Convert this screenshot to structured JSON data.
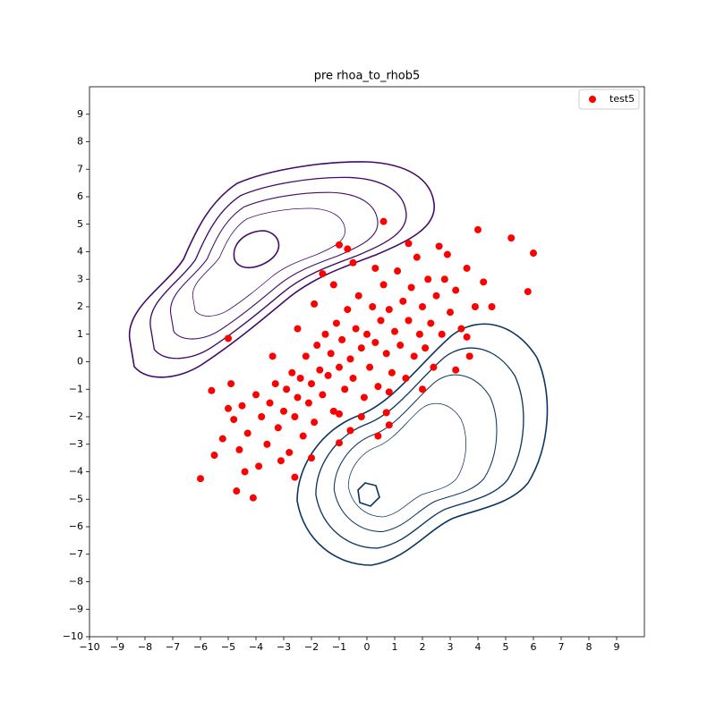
{
  "chart_data": {
    "type": "scatter",
    "title": "pre rhoa_to_rhob5",
    "xlim": [
      -10,
      10
    ],
    "ylim": [
      -10,
      10
    ],
    "xticks": [
      {
        "value": -10,
        "label": "−10"
      },
      {
        "value": -9,
        "label": "−9"
      },
      {
        "value": -8,
        "label": "−8"
      },
      {
        "value": -7,
        "label": "−7"
      },
      {
        "value": -6,
        "label": "−6"
      },
      {
        "value": -5,
        "label": "−5"
      },
      {
        "value": -4,
        "label": "−4"
      },
      {
        "value": -3,
        "label": "−3"
      },
      {
        "value": -2,
        "label": "−2"
      },
      {
        "value": -1,
        "label": "−1"
      },
      0,
      1,
      2,
      3,
      4,
      5,
      6,
      7,
      8,
      9
    ],
    "yticks": [
      {
        "value": -10,
        "label": "−10"
      },
      {
        "value": -9,
        "label": "−9"
      },
      {
        "value": -8,
        "label": "−8"
      },
      {
        "value": -7,
        "label": "−7"
      },
      {
        "value": -6,
        "label": "−6"
      },
      {
        "value": -5,
        "label": "−5"
      },
      {
        "value": -4,
        "label": "−4"
      },
      {
        "value": -3,
        "label": "−3"
      },
      {
        "value": -2,
        "label": "−2"
      },
      {
        "value": -1,
        "label": "−1"
      },
      0,
      1,
      2,
      3,
      4,
      5,
      6,
      7,
      8,
      9
    ],
    "legend": "upper right",
    "series": [
      {
        "name": "test5",
        "color": "#ff0000",
        "x": [
          -4.8,
          -4.5,
          -4.3,
          -4.0,
          -3.8,
          -3.6,
          -3.5,
          -3.3,
          -3.2,
          -3.0,
          -2.9,
          -2.8,
          -2.7,
          -2.6,
          -2.5,
          -2.4,
          -2.3,
          -2.2,
          -2.1,
          -2.0,
          -1.9,
          -1.8,
          -1.7,
          -1.6,
          -1.5,
          -1.4,
          -1.3,
          -1.2,
          -1.1,
          -1.0,
          -0.9,
          -0.8,
          -0.7,
          -0.6,
          -0.5,
          -0.4,
          -0.3,
          -0.2,
          -0.1,
          0.0,
          0.1,
          0.2,
          0.3,
          0.4,
          0.5,
          0.6,
          0.7,
          0.8,
          0.9,
          1.0,
          1.1,
          1.2,
          1.3,
          1.4,
          1.5,
          1.6,
          1.7,
          1.8,
          1.9,
          2.0,
          2.1,
          2.2,
          2.3,
          2.4,
          2.5,
          2.6,
          2.7,
          2.8,
          3.0,
          3.2,
          3.4,
          3.6,
          3.9,
          4.2,
          -5.2,
          -5.5,
          -5.0,
          -4.6,
          -4.4,
          -4.9,
          -3.9,
          -3.1,
          -2.0,
          -1.0,
          -0.2,
          0.8,
          -3.4,
          -2.5,
          -1.9,
          -1.2,
          -0.5,
          0.3,
          1.5,
          2.9,
          3.7,
          3.2,
          2.0,
          0.6,
          -5.0,
          -6.0,
          -4.1,
          5.2,
          6.0,
          5.8,
          4.0,
          -1.0,
          -0.7,
          -1.6,
          0.4,
          -1.0,
          0.8,
          0.7,
          -0.6,
          -5.6,
          -4.7,
          4.5,
          3.6,
          -2.6
        ],
        "y": [
          -2.1,
          -1.6,
          -2.6,
          -1.2,
          -2.0,
          -3.0,
          -1.5,
          -0.8,
          -2.4,
          -1.8,
          -1.0,
          -3.3,
          -0.4,
          -2.0,
          -1.3,
          -0.6,
          -2.7,
          0.2,
          -1.5,
          -0.8,
          -2.2,
          0.6,
          -0.3,
          -1.2,
          1.0,
          -0.5,
          0.3,
          -1.8,
          1.4,
          -0.2,
          0.8,
          -1.0,
          1.9,
          0.1,
          -0.6,
          1.2,
          2.4,
          0.5,
          -1.3,
          1.0,
          -0.2,
          2.0,
          0.7,
          -0.9,
          1.5,
          2.8,
          0.3,
          1.9,
          -0.4,
          1.1,
          3.3,
          0.6,
          2.2,
          -0.6,
          1.5,
          2.7,
          0.2,
          3.8,
          1.0,
          2.0,
          0.5,
          3.0,
          1.4,
          -0.2,
          2.4,
          4.2,
          1.0,
          3.0,
          1.8,
          2.6,
          1.2,
          3.4,
          2.0,
          2.9,
          -2.8,
          -3.4,
          -1.7,
          -3.2,
          -4.0,
          -0.8,
          -3.8,
          -3.6,
          -3.5,
          -1.9,
          -2.0,
          -1.1,
          0.2,
          1.2,
          2.1,
          2.8,
          3.6,
          3.4,
          4.3,
          3.9,
          0.2,
          -0.3,
          -1.0,
          5.1,
          0.85,
          -4.25,
          -4.95,
          4.5,
          3.95,
          2.55,
          4.8,
          4.25,
          4.1,
          3.2,
          -2.7,
          -2.95,
          -2.3,
          -1.85,
          -2.5,
          -1.05,
          -4.7,
          2.0,
          0.9,
          -4.2
        ]
      }
    ]
  }
}
